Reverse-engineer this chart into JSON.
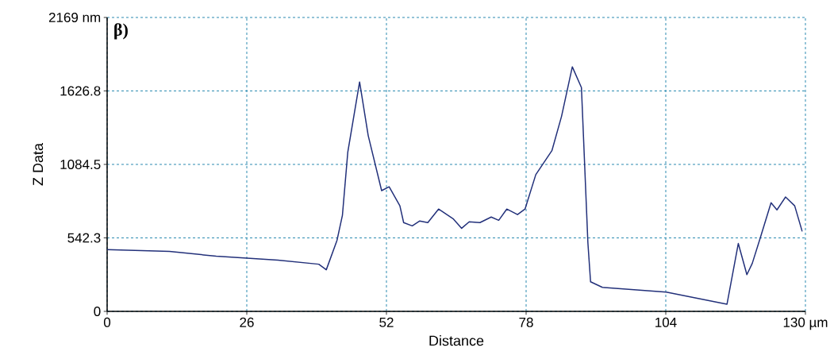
{
  "chart_data": {
    "type": "line",
    "xlabel": "Distance",
    "ylabel": "Z Data",
    "annotations": [
      "β)"
    ],
    "x": [
      0,
      11.6,
      20.3,
      31.8,
      39.4,
      40.8,
      42.8,
      43.8,
      44.8,
      47.0,
      48.6,
      51.1,
      52.5,
      54.5,
      55.2,
      56.8,
      58.2,
      59.7,
      61.7,
      64.4,
      66.0,
      67.4,
      69.4,
      71.5,
      72.9,
      74.4,
      76.4,
      77.8,
      79.8,
      82.8,
      84.6,
      86.6,
      88.3,
      89.5,
      90.0,
      92.2,
      104.1,
      115.4,
      117.5,
      119.1,
      120.1,
      121.5,
      123.6,
      124.7,
      126.3,
      128.0,
      129.4
    ],
    "values": [
      455,
      443,
      407,
      378,
      348,
      307,
      525,
      708,
      1174,
      1693,
      1298,
      891,
      920,
      779,
      655,
      631,
      667,
      655,
      755,
      684,
      613,
      661,
      655,
      696,
      672,
      755,
      714,
      755,
      1009,
      1186,
      1440,
      1805,
      1652,
      507,
      218,
      177,
      142,
      53,
      501,
      271,
      354,
      531,
      802,
      749,
      844,
      779,
      590
    ],
    "color": "#22307a",
    "marker": "none",
    "grid": true,
    "xlim": [
      0,
      130
    ],
    "ylim": [
      0,
      2169
    ],
    "xticks": [
      0,
      26,
      52,
      78,
      104,
      {
        "value": 130,
        "label": "130 µm"
      }
    ],
    "yticks": [
      0,
      542.3,
      1084.5,
      1626.8,
      {
        "value": 2169,
        "label": "2169 nm"
      }
    ]
  }
}
